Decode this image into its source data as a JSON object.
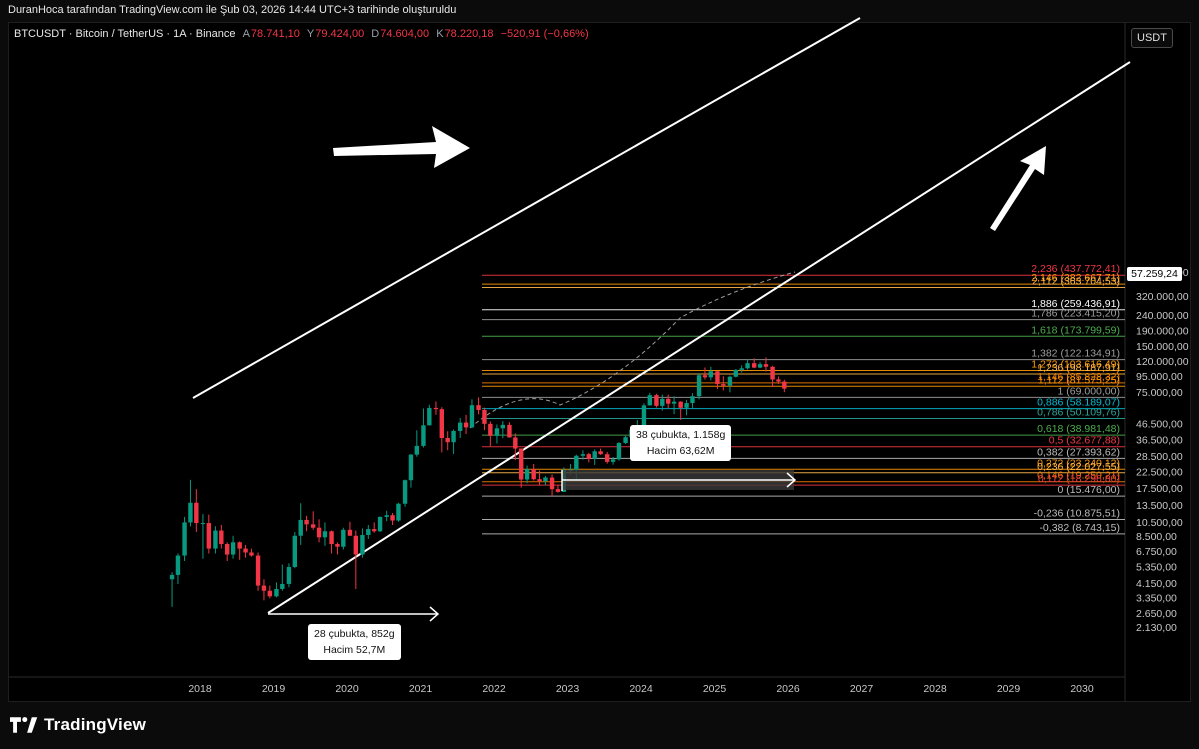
{
  "header": {
    "top_line": "DuranHoca tarafından TradingView.com ile Şub 03, 2026 14:44 UTC+3 tarihinde oluşturuldu",
    "symbol": "BTCUSDT · Bitcoin / TetherUS · 1A · Binance",
    "ohlc": [
      {
        "label": "A",
        "value": "78.741,10"
      },
      {
        "label": "Y",
        "value": "79.424,00"
      },
      {
        "label": "D",
        "value": "74.604,00"
      },
      {
        "label": "K",
        "value": "78.220,18"
      }
    ],
    "change": "−520,91 (−0,66%)",
    "currency_button": "USDT",
    "last_price": "57.259,24"
  },
  "footer": {
    "brand": "TradingView",
    "logo_icon": "tradingview-logo-icon"
  },
  "annotations": {
    "box1_line1": "28 çubukta, 852g",
    "box1_line2": "Hacim 52,7M",
    "box2_line1": "38 çubukta, 1.158g",
    "box2_line2": "Hacim 63,62M"
  },
  "chart_data": {
    "type": "candlestick",
    "scale": "log",
    "x_ticks": [
      "2018",
      "2019",
      "2020",
      "2021",
      "2022",
      "2023",
      "2024",
      "2025",
      "2026",
      "2027",
      "2028",
      "2029",
      "2030"
    ],
    "y_ticks": [
      {
        "label": "460.000,00",
        "value": 460000
      },
      {
        "label": "320.000,00",
        "value": 320000
      },
      {
        "label": "240.000,00",
        "value": 240000
      },
      {
        "label": "190.000,00",
        "value": 190000
      },
      {
        "label": "150.000,00",
        "value": 150000
      },
      {
        "label": "120.000,00",
        "value": 120000
      },
      {
        "label": "95.000,00",
        "value": 95000
      },
      {
        "label": "75.000,00",
        "value": 75000
      },
      {
        "label": "46.500,00",
        "value": 46500
      },
      {
        "label": "36.500,00",
        "value": 36500
      },
      {
        "label": "28.500,00",
        "value": 28500
      },
      {
        "label": "22.500,00",
        "value": 22500
      },
      {
        "label": "17.500,00",
        "value": 17500
      },
      {
        "label": "13.500,00",
        "value": 13500
      },
      {
        "label": "10.500,00",
        "value": 10500
      },
      {
        "label": "8.500,00",
        "value": 8500
      },
      {
        "label": "6.750,00",
        "value": 6750
      },
      {
        "label": "5.350,00",
        "value": 5350
      },
      {
        "label": "4.150,00",
        "value": 4150
      },
      {
        "label": "3.350,00",
        "value": 3350
      },
      {
        "label": "2.650,00",
        "value": 2650
      },
      {
        "label": "2.130,00",
        "value": 2130
      }
    ],
    "fib_levels": [
      {
        "label": "2,236 (437.772,41)",
        "price": 437772.41,
        "color": "#f23645"
      },
      {
        "label": "2,146 (382.667,71)",
        "price": 382667.71,
        "color": "#ff9800"
      },
      {
        "label": "2,112 (363.704,53)",
        "price": 363704.53,
        "color": "#ffb74d"
      },
      {
        "label": "1,886 (259.436,91)",
        "price": 259436.91,
        "color": "#ffffff"
      },
      {
        "label": "1,786 (223.415,20)",
        "price": 223415.2,
        "color": "#9e9e9e"
      },
      {
        "label": "1,618 (173.799,59)",
        "price": 173799.59,
        "color": "#4caf50"
      },
      {
        "label": "1,382 (122.134,91)",
        "price": 122134.91,
        "color": "#9e9e9e"
      },
      {
        "label": "1,272 (103.616,49)",
        "price": 103616.49,
        "color": "#ff9800"
      },
      {
        "label": "1,236 (98.187,91)",
        "price": 98187.91,
        "color": "#ffb74d"
      },
      {
        "label": "1,146 (85.828,32)",
        "price": 85828.32,
        "color": "#f57c00"
      },
      {
        "label": "1,112 (81.575,25)",
        "price": 81575.25,
        "color": "#ff9800"
      },
      {
        "label": "1 (69.000,00)",
        "price": 69000.0,
        "color": "#9e9e9e"
      },
      {
        "label": "0,886 (58.189,07)",
        "price": 58189.07,
        "color": "#00bcd4"
      },
      {
        "label": "0,786 (50.109,76)",
        "price": 50109.76,
        "color": "#26a69a"
      },
      {
        "label": "0,618 (38.981,48)",
        "price": 38981.48,
        "color": "#4caf50"
      },
      {
        "label": "0,5 (32.677,88)",
        "price": 32677.88,
        "color": "#f23645"
      },
      {
        "label": "0,382 (27.393,62)",
        "price": 27393.62,
        "color": "#bdbdbd"
      },
      {
        "label": "0,272 (23.240,12)",
        "price": 23240.12,
        "color": "#ff9800"
      },
      {
        "label": "0,236 (22.027,55)",
        "price": 22027.55,
        "color": "#ffb74d"
      },
      {
        "label": "0,146 (19.250,21)",
        "price": 19250.21,
        "color": "#f57c00"
      },
      {
        "label": "0,112 (18.296,80)",
        "price": 18296.8,
        "color": "#f23645"
      },
      {
        "label": "0 (15.476,00)",
        "price": 15476.0,
        "color": "#bdbdbd"
      },
      {
        "label": "-0,236 (10.875,51)",
        "price": 10875.51,
        "color": "#bdbdbd"
      },
      {
        "label": "-0,382 (8.743,15)",
        "price": 8743.15,
        "color": "#bdbdbd"
      }
    ],
    "candles": [
      {
        "t": 2017.62,
        "o": 4400,
        "h": 4900,
        "l": 2900,
        "c": 4700
      },
      {
        "t": 2017.7,
        "o": 4700,
        "h": 6500,
        "l": 4100,
        "c": 6300
      },
      {
        "t": 2017.79,
        "o": 6300,
        "h": 11300,
        "l": 5800,
        "c": 10400
      },
      {
        "t": 2017.87,
        "o": 10400,
        "h": 19800,
        "l": 9800,
        "c": 14000
      },
      {
        "t": 2017.95,
        "o": 14000,
        "h": 17200,
        "l": 9000,
        "c": 10300
      },
      {
        "t": 2018.04,
        "o": 10300,
        "h": 11800,
        "l": 6000,
        "c": 10300
      },
      {
        "t": 2018.12,
        "o": 10300,
        "h": 11700,
        "l": 6500,
        "c": 7000
      },
      {
        "t": 2018.21,
        "o": 7000,
        "h": 9800,
        "l": 6500,
        "c": 9200
      },
      {
        "t": 2018.29,
        "o": 9200,
        "h": 10000,
        "l": 7000,
        "c": 7500
      },
      {
        "t": 2018.37,
        "o": 7500,
        "h": 7700,
        "l": 5800,
        "c": 6400
      },
      {
        "t": 2018.45,
        "o": 6400,
        "h": 8500,
        "l": 6000,
        "c": 7700
      },
      {
        "t": 2018.54,
        "o": 7700,
        "h": 7800,
        "l": 5900,
        "c": 7000
      },
      {
        "t": 2018.62,
        "o": 7000,
        "h": 7400,
        "l": 6100,
        "c": 6600
      },
      {
        "t": 2018.7,
        "o": 6600,
        "h": 7000,
        "l": 6200,
        "c": 6300
      },
      {
        "t": 2018.79,
        "o": 6300,
        "h": 6600,
        "l": 3700,
        "c": 4000
      },
      {
        "t": 2018.87,
        "o": 4000,
        "h": 4400,
        "l": 3200,
        "c": 3700
      },
      {
        "t": 2018.95,
        "o": 3700,
        "h": 4000,
        "l": 3300,
        "c": 3400
      },
      {
        "t": 2019.04,
        "o": 3400,
        "h": 4200,
        "l": 3350,
        "c": 3800
      },
      {
        "t": 2019.12,
        "o": 3800,
        "h": 5500,
        "l": 3700,
        "c": 4100
      },
      {
        "t": 2019.21,
        "o": 4100,
        "h": 5600,
        "l": 3900,
        "c": 5300
      },
      {
        "t": 2019.29,
        "o": 5300,
        "h": 9000,
        "l": 5200,
        "c": 8500
      },
      {
        "t": 2019.37,
        "o": 8500,
        "h": 13900,
        "l": 7400,
        "c": 10800
      },
      {
        "t": 2019.45,
        "o": 10800,
        "h": 11500,
        "l": 9100,
        "c": 10100
      },
      {
        "t": 2019.54,
        "o": 10100,
        "h": 12300,
        "l": 9300,
        "c": 9600
      },
      {
        "t": 2019.62,
        "o": 9600,
        "h": 10900,
        "l": 7700,
        "c": 8300
      },
      {
        "t": 2019.7,
        "o": 8300,
        "h": 10400,
        "l": 7300,
        "c": 9100
      },
      {
        "t": 2019.79,
        "o": 9100,
        "h": 9200,
        "l": 6500,
        "c": 7500
      },
      {
        "t": 2019.87,
        "o": 7500,
        "h": 7700,
        "l": 6400,
        "c": 7200
      },
      {
        "t": 2019.95,
        "o": 7200,
        "h": 9600,
        "l": 6900,
        "c": 9300
      },
      {
        "t": 2020.04,
        "o": 9300,
        "h": 10500,
        "l": 8500,
        "c": 8500
      },
      {
        "t": 2020.12,
        "o": 8500,
        "h": 9200,
        "l": 3800,
        "c": 6400
      },
      {
        "t": 2020.21,
        "o": 6400,
        "h": 9500,
        "l": 6100,
        "c": 8600
      },
      {
        "t": 2020.29,
        "o": 8600,
        "h": 10000,
        "l": 8100,
        "c": 9400
      },
      {
        "t": 2020.37,
        "o": 9400,
        "h": 10400,
        "l": 8900,
        "c": 9100
      },
      {
        "t": 2020.45,
        "o": 9100,
        "h": 11400,
        "l": 9000,
        "c": 11300
      },
      {
        "t": 2020.54,
        "o": 11300,
        "h": 12400,
        "l": 10600,
        "c": 11600
      },
      {
        "t": 2020.62,
        "o": 11600,
        "h": 12000,
        "l": 10000,
        "c": 10700
      },
      {
        "t": 2020.7,
        "o": 10700,
        "h": 14000,
        "l": 10500,
        "c": 13800
      },
      {
        "t": 2020.79,
        "o": 13800,
        "h": 19900,
        "l": 13200,
        "c": 19700
      },
      {
        "t": 2020.87,
        "o": 19700,
        "h": 29300,
        "l": 17600,
        "c": 29000
      },
      {
        "t": 2020.95,
        "o": 29000,
        "h": 41900,
        "l": 28100,
        "c": 33100
      },
      {
        "t": 2021.04,
        "o": 33100,
        "h": 58300,
        "l": 32300,
        "c": 45200
      },
      {
        "t": 2021.12,
        "o": 45200,
        "h": 61700,
        "l": 45000,
        "c": 58800
      },
      {
        "t": 2021.21,
        "o": 58800,
        "h": 64800,
        "l": 53000,
        "c": 57700
      },
      {
        "t": 2021.29,
        "o": 57700,
        "h": 59500,
        "l": 30000,
        "c": 37300
      },
      {
        "t": 2021.37,
        "o": 37300,
        "h": 41300,
        "l": 31000,
        "c": 35000
      },
      {
        "t": 2021.45,
        "o": 35000,
        "h": 42400,
        "l": 29300,
        "c": 41500
      },
      {
        "t": 2021.54,
        "o": 41500,
        "h": 50500,
        "l": 37300,
        "c": 47100
      },
      {
        "t": 2021.62,
        "o": 47100,
        "h": 52900,
        "l": 39600,
        "c": 43800
      },
      {
        "t": 2021.7,
        "o": 43800,
        "h": 67000,
        "l": 43300,
        "c": 61300
      },
      {
        "t": 2021.79,
        "o": 61300,
        "h": 69000,
        "l": 53300,
        "c": 57000
      },
      {
        "t": 2021.87,
        "o": 57000,
        "h": 59000,
        "l": 42000,
        "c": 46200
      },
      {
        "t": 2021.95,
        "o": 46200,
        "h": 47900,
        "l": 32900,
        "c": 38500
      },
      {
        "t": 2022.04,
        "o": 38500,
        "h": 45800,
        "l": 34300,
        "c": 43200
      },
      {
        "t": 2022.12,
        "o": 43200,
        "h": 48200,
        "l": 37200,
        "c": 45500
      },
      {
        "t": 2022.21,
        "o": 45500,
        "h": 47400,
        "l": 37700,
        "c": 37600
      },
      {
        "t": 2022.29,
        "o": 37600,
        "h": 40000,
        "l": 26700,
        "c": 31800
      },
      {
        "t": 2022.37,
        "o": 31800,
        "h": 31900,
        "l": 17600,
        "c": 19900
      },
      {
        "t": 2022.45,
        "o": 19900,
        "h": 24600,
        "l": 18800,
        "c": 23300
      },
      {
        "t": 2022.54,
        "o": 23300,
        "h": 25200,
        "l": 19600,
        "c": 20000
      },
      {
        "t": 2022.62,
        "o": 20000,
        "h": 22800,
        "l": 18200,
        "c": 19400
      },
      {
        "t": 2022.7,
        "o": 19400,
        "h": 21000,
        "l": 18200,
        "c": 20500
      },
      {
        "t": 2022.79,
        "o": 20500,
        "h": 21500,
        "l": 15500,
        "c": 17200
      },
      {
        "t": 2022.87,
        "o": 17200,
        "h": 18400,
        "l": 16300,
        "c": 16500
      },
      {
        "t": 2022.95,
        "o": 16500,
        "h": 23900,
        "l": 16500,
        "c": 23100
      },
      {
        "t": 2023.04,
        "o": 23100,
        "h": 25200,
        "l": 21400,
        "c": 23100
      },
      {
        "t": 2023.12,
        "o": 23100,
        "h": 29000,
        "l": 19600,
        "c": 28500
      },
      {
        "t": 2023.21,
        "o": 28500,
        "h": 31000,
        "l": 26900,
        "c": 29200
      },
      {
        "t": 2023.29,
        "o": 29200,
        "h": 29800,
        "l": 25800,
        "c": 27200
      },
      {
        "t": 2023.37,
        "o": 27200,
        "h": 31400,
        "l": 24800,
        "c": 30500
      },
      {
        "t": 2023.45,
        "o": 30500,
        "h": 31800,
        "l": 28900,
        "c": 29200
      },
      {
        "t": 2023.54,
        "o": 29200,
        "h": 30200,
        "l": 25300,
        "c": 26000
      },
      {
        "t": 2023.62,
        "o": 26000,
        "h": 28000,
        "l": 24900,
        "c": 27000
      },
      {
        "t": 2023.7,
        "o": 27000,
        "h": 35000,
        "l": 26500,
        "c": 34600
      },
      {
        "t": 2023.79,
        "o": 34600,
        "h": 38500,
        "l": 34100,
        "c": 37700
      },
      {
        "t": 2023.87,
        "o": 37700,
        "h": 44700,
        "l": 37600,
        "c": 42300
      },
      {
        "t": 2023.95,
        "o": 42300,
        "h": 48900,
        "l": 38500,
        "c": 42600
      },
      {
        "t": 2024.04,
        "o": 42600,
        "h": 63000,
        "l": 41900,
        "c": 61100
      },
      {
        "t": 2024.12,
        "o": 61100,
        "h": 73800,
        "l": 60800,
        "c": 71300
      },
      {
        "t": 2024.21,
        "o": 71300,
        "h": 72800,
        "l": 59200,
        "c": 60700
      },
      {
        "t": 2024.29,
        "o": 60700,
        "h": 71900,
        "l": 56500,
        "c": 67500
      },
      {
        "t": 2024.37,
        "o": 67500,
        "h": 72000,
        "l": 58400,
        "c": 62700
      },
      {
        "t": 2024.45,
        "o": 62700,
        "h": 70000,
        "l": 53500,
        "c": 64600
      },
      {
        "t": 2024.54,
        "o": 64600,
        "h": 65100,
        "l": 49000,
        "c": 58900
      },
      {
        "t": 2024.62,
        "o": 58900,
        "h": 66500,
        "l": 52500,
        "c": 63300
      },
      {
        "t": 2024.7,
        "o": 63300,
        "h": 73600,
        "l": 58900,
        "c": 70200
      },
      {
        "t": 2024.79,
        "o": 70200,
        "h": 99500,
        "l": 66800,
        "c": 96400
      },
      {
        "t": 2024.87,
        "o": 96400,
        "h": 108300,
        "l": 90500,
        "c": 93400
      },
      {
        "t": 2024.95,
        "o": 93400,
        "h": 109600,
        "l": 89200,
        "c": 102400
      },
      {
        "t": 2025.04,
        "o": 102400,
        "h": 102500,
        "l": 78200,
        "c": 84300
      },
      {
        "t": 2025.12,
        "o": 84300,
        "h": 95000,
        "l": 76600,
        "c": 82500
      },
      {
        "t": 2025.21,
        "o": 82500,
        "h": 95800,
        "l": 74500,
        "c": 94200
      },
      {
        "t": 2025.29,
        "o": 94200,
        "h": 105800,
        "l": 93300,
        "c": 104600
      },
      {
        "t": 2025.37,
        "o": 104600,
        "h": 112000,
        "l": 100400,
        "c": 107100
      },
      {
        "t": 2025.45,
        "o": 107100,
        "h": 123200,
        "l": 105100,
        "c": 115700
      },
      {
        "t": 2025.54,
        "o": 115700,
        "h": 124500,
        "l": 107200,
        "c": 108200
      },
      {
        "t": 2025.62,
        "o": 108200,
        "h": 117900,
        "l": 107300,
        "c": 114000
      },
      {
        "t": 2025.7,
        "o": 114000,
        "h": 126200,
        "l": 102000,
        "c": 109600
      },
      {
        "t": 2025.79,
        "o": 109600,
        "h": 111000,
        "l": 80600,
        "c": 90400
      },
      {
        "t": 2025.87,
        "o": 90400,
        "h": 94600,
        "l": 84400,
        "c": 87600
      },
      {
        "t": 2025.95,
        "o": 87600,
        "h": 90000,
        "l": 74600,
        "c": 78741
      }
    ]
  }
}
